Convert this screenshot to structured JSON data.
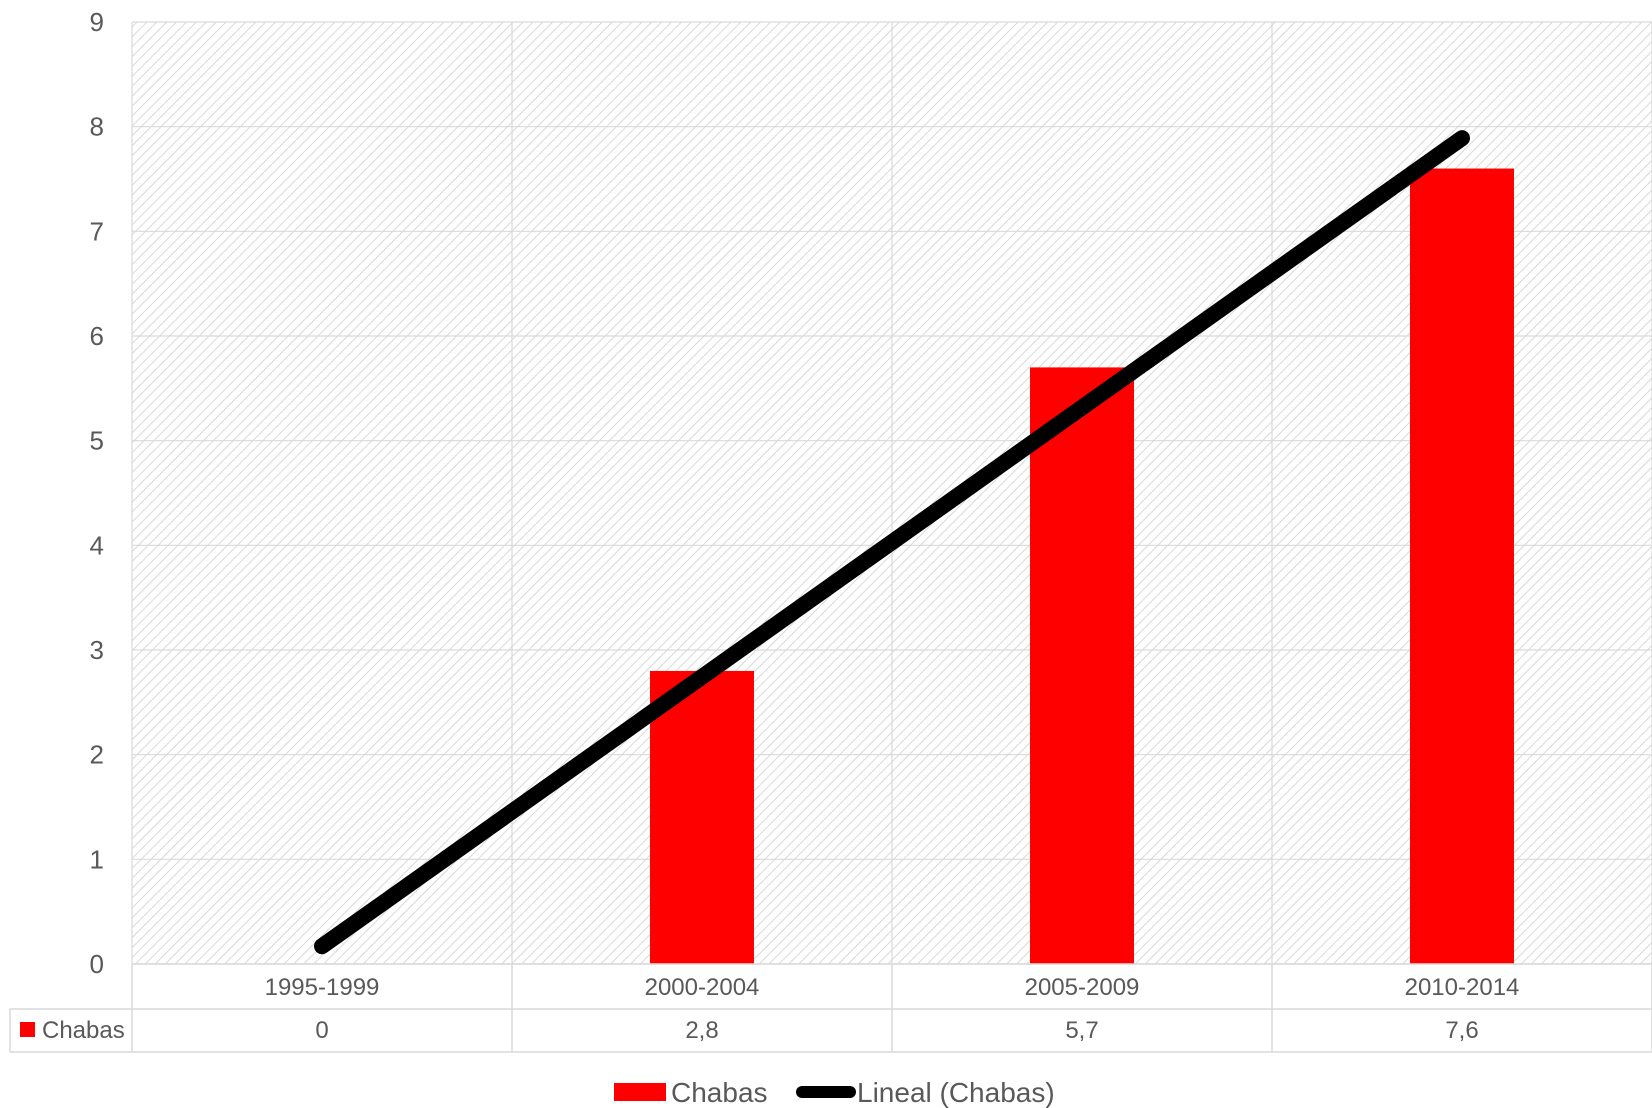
{
  "chart_data": {
    "type": "bar",
    "categories": [
      "1995-1999",
      "2000-2004",
      "2005-2009",
      "2010-2014"
    ],
    "series": [
      {
        "name": "Chabas",
        "values": [
          0,
          2.8,
          5.7,
          7.6
        ],
        "color": "#ff0000"
      }
    ],
    "trendline": {
      "name": "Lineal (Chabas)",
      "type": "linear",
      "color": "#000000",
      "start": 0.17,
      "end": 7.89
    },
    "data_table": {
      "row_label": "Chabas",
      "cells": [
        "0",
        "2,8",
        "5,7",
        "7,6"
      ]
    },
    "y_ticks": [
      "0",
      "1",
      "2",
      "3",
      "4",
      "5",
      "6",
      "7",
      "8",
      "9"
    ],
    "ylim": [
      0,
      9
    ],
    "grid": true,
    "legend": {
      "position": "bottom",
      "items": [
        "Chabas",
        "Lineal (Chabas)"
      ]
    },
    "colors": {
      "bar": "#ff0000",
      "trend": "#000000",
      "grid": "#d9d9d9",
      "text": "#595959"
    }
  }
}
